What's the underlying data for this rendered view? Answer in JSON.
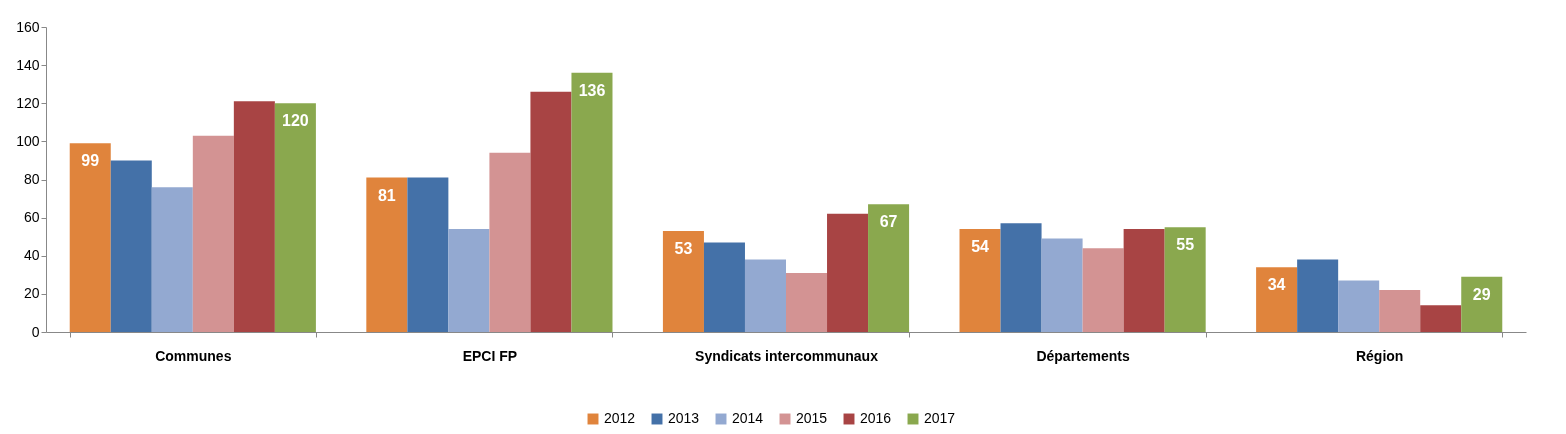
{
  "chart_data": {
    "type": "bar",
    "categories": [
      "Communes",
      "EPCI FP",
      "Syndicats intercommunaux",
      "Départements",
      "Région"
    ],
    "series": [
      {
        "name": "2012",
        "color": "#e0843c",
        "values": [
          99,
          81,
          53,
          54,
          34
        ],
        "value_labels": [
          "99",
          "81",
          "53",
          "54",
          "34"
        ]
      },
      {
        "name": "2013",
        "color": "#4471a8",
        "values": [
          90,
          81,
          47,
          57,
          38
        ]
      },
      {
        "name": "2014",
        "color": "#93a9d1",
        "values": [
          76,
          54,
          38,
          49,
          27
        ]
      },
      {
        "name": "2015",
        "color": "#d39393",
        "values": [
          103,
          94,
          31,
          44,
          22
        ]
      },
      {
        "name": "2016",
        "color": "#a84444",
        "values": [
          121,
          126,
          62,
          54,
          14
        ]
      },
      {
        "name": "2017",
        "color": "#8aa84e",
        "values": [
          120,
          136,
          67,
          55,
          29
        ],
        "value_labels": [
          "120",
          "136",
          "67",
          "55",
          "29"
        ]
      }
    ],
    "ylim": [
      0,
      160
    ],
    "yticks": [
      0,
      20,
      40,
      60,
      80,
      100,
      120,
      140,
      160
    ],
    "grid": false,
    "legend": "bottom"
  }
}
